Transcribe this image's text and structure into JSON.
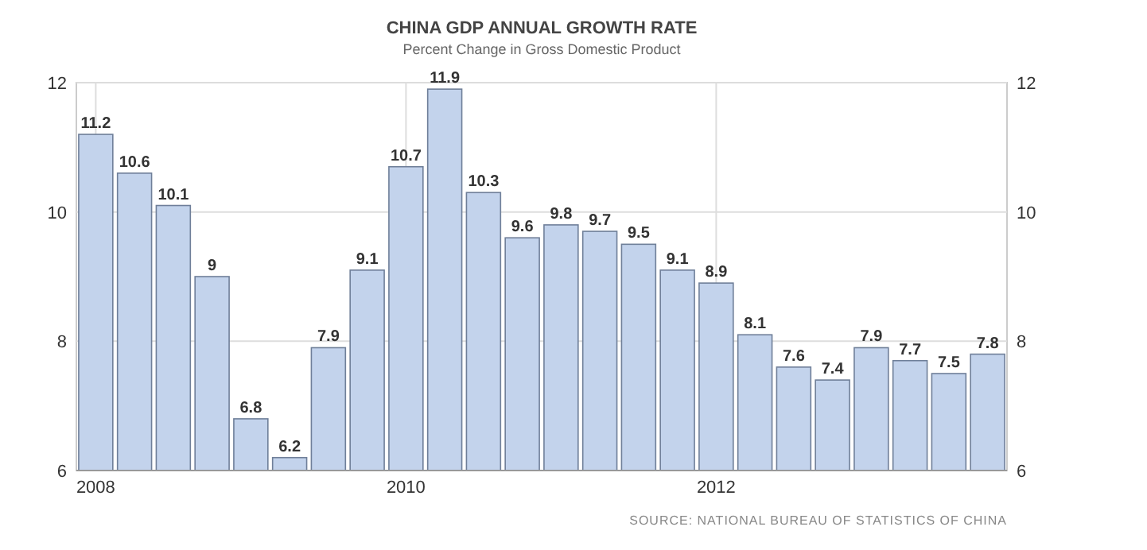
{
  "chart_data": {
    "type": "bar",
    "title": "CHINA GDP ANNUAL GROWTH RATE",
    "subtitle": "Percent Change in Gross Domestic Product",
    "categories": [
      "2008",
      null,
      null,
      null,
      null,
      null,
      null,
      null,
      "2010",
      null,
      null,
      null,
      null,
      null,
      null,
      null,
      "2012",
      null,
      null,
      null,
      null,
      null,
      null,
      null
    ],
    "values": [
      11.2,
      10.6,
      10.1,
      9,
      6.8,
      6.2,
      7.9,
      9.1,
      10.7,
      11.9,
      10.3,
      9.6,
      9.8,
      9.7,
      9.5,
      9.1,
      8.9,
      8.1,
      7.6,
      7.4,
      7.9,
      7.7,
      7.5,
      7.8
    ],
    "color": "#c3d3ec",
    "ylim": [
      6,
      12
    ],
    "yticks": [
      6,
      8,
      10,
      12
    ],
    "y2lim": [
      6,
      12
    ],
    "y2ticks": [
      6,
      8,
      10,
      12
    ],
    "grid": true,
    "data_labels": true,
    "annotations": [
      "SOURCE: NATIONAL BUREAU OF STATISTICS OF CHINA"
    ]
  }
}
